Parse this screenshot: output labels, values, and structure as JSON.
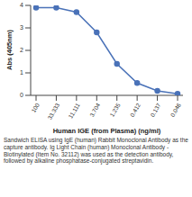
{
  "chart_data": {
    "type": "line",
    "x_label": "Human IGE (from Plasma) (ng/ml)",
    "y_label": "Abs (405nm)",
    "categories": [
      "100",
      "33.333",
      "11.111",
      "3.704",
      "1.235",
      "0.412",
      "0.137",
      "0.046"
    ],
    "values": [
      3.9,
      3.9,
      3.7,
      2.8,
      1.4,
      0.55,
      0.2,
      0.07
    ],
    "color": "#4a72b8",
    "marker": "circle",
    "ylim": [
      0,
      4
    ],
    "yticks": [
      0,
      1,
      2,
      3,
      4
    ],
    "grid": false,
    "annotations": [
      "Sandwich ELISA using IgE (human) Rabbit Monoclonal Antibody as the capture antibody. Ig Light Chain (human) Monoclonal Antibody - Biotinylated (Item No. 32112) was used as the detection antibody, followed by alkaline phosphatase-conjugated streptavidin."
    ]
  }
}
